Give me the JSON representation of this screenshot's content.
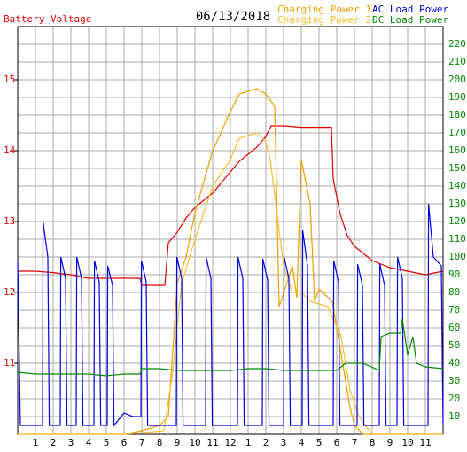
{
  "chart_data": {
    "type": "line",
    "title": "06/13/2018",
    "xlim": [
      0,
      24
    ],
    "xticks": [
      1,
      2,
      3,
      4,
      5,
      6,
      7,
      8,
      9,
      10,
      11,
      12,
      {
        "value": 13,
        "label": "1"
      },
      {
        "value": 14,
        "label": "2"
      },
      {
        "value": 15,
        "label": "3"
      },
      {
        "value": 16,
        "label": "4"
      },
      {
        "value": 17,
        "label": "5"
      },
      {
        "value": 18,
        "label": "6"
      },
      {
        "value": 19,
        "label": "7"
      },
      {
        "value": 20,
        "label": "8"
      },
      {
        "value": 21,
        "label": "9"
      },
      {
        "value": 22,
        "label": "10"
      },
      {
        "value": 23,
        "label": "11"
      }
    ],
    "ylim": [
      10,
      15.75
    ],
    "yticks": [
      11,
      12,
      13,
      14,
      15
    ],
    "y2lim": [
      0,
      230
    ],
    "y2ticks": [
      10,
      20,
      30,
      40,
      50,
      60,
      70,
      80,
      90,
      100,
      110,
      120,
      130,
      140,
      150,
      160,
      170,
      180,
      190,
      200,
      210,
      220
    ],
    "grid": true,
    "ytick_color": "#dd0000",
    "y2tick_color": "#008800",
    "series": [
      {
        "name": "Battery Voltage",
        "color": "#dd0000",
        "x": [
          0,
          1,
          2,
          3,
          4,
          5,
          6,
          6.9,
          7,
          8.3,
          8.5,
          9,
          9.5,
          10,
          10.5,
          11,
          11.5,
          12,
          12.5,
          13,
          13.5,
          14,
          14.3,
          15,
          16,
          17,
          17.7,
          17.8,
          18.2,
          18.6,
          19,
          19.5,
          20,
          21,
          22,
          23,
          24
        ],
        "values": [
          12.3,
          12.3,
          12.28,
          12.25,
          12.2,
          12.2,
          12.2,
          12.2,
          12.1,
          12.1,
          12.7,
          12.85,
          13.05,
          13.2,
          13.3,
          13.4,
          13.55,
          13.7,
          13.85,
          13.95,
          14.05,
          14.2,
          14.35,
          14.35,
          14.33,
          14.33,
          14.33,
          13.6,
          13.1,
          12.8,
          12.65,
          12.55,
          12.45,
          12.35,
          12.3,
          12.25,
          12.3
        ]
      },
      {
        "name": "Charging Power 1",
        "color": "#f0a000",
        "axis": "y2",
        "x": [
          0,
          6,
          7,
          8,
          8.5,
          9,
          9.5,
          10,
          11,
          12,
          12.5,
          13.5,
          14,
          14.5,
          14.75,
          15.5,
          15.75,
          16,
          16.5,
          16.75,
          17,
          17.75,
          18.25,
          18.75,
          19,
          19.5,
          24
        ],
        "values": [
          0,
          0,
          2,
          5,
          10,
          85,
          100,
          125,
          160,
          182,
          192,
          195,
          192,
          185,
          72,
          95,
          77,
          155,
          130,
          75,
          82,
          75,
          45,
          15,
          5,
          0,
          0
        ]
      },
      {
        "name": "Charging Power 2",
        "color": "#f8c030",
        "axis": "y2",
        "x": [
          0,
          6,
          8.25,
          8.75,
          9.25,
          10,
          11,
          12,
          12.5,
          13.5,
          14,
          14.25,
          14.5,
          15,
          15.5,
          16,
          16.5,
          17.5,
          18.25,
          18.75,
          19.25,
          20,
          24
        ],
        "values": [
          0,
          0,
          2,
          35,
          85,
          110,
          140,
          155,
          167,
          170,
          165,
          155,
          135,
          95,
          80,
          80,
          75,
          72,
          55,
          25,
          10,
          0,
          0
        ]
      },
      {
        "name": "AC Load Power",
        "color": "#0000dd",
        "axis": "y2",
        "x": [
          0,
          0.15,
          1.4,
          1.43,
          1.7,
          1.78,
          2.4,
          2.43,
          2.7,
          2.78,
          3.3,
          3.33,
          3.6,
          3.68,
          4.3,
          4.33,
          4.6,
          4.68,
          5.05,
          5.08,
          5.35,
          5.43,
          6,
          6.5,
          6.95,
          6.98,
          7.25,
          7.33,
          8.95,
          8.98,
          9.25,
          9.33,
          10.6,
          10.63,
          10.9,
          10.98,
          12.4,
          12.43,
          12.7,
          12.78,
          13.8,
          13.83,
          14.1,
          14.18,
          15,
          15.03,
          15.3,
          15.38,
          16.05,
          16.08,
          16.35,
          16.43,
          17.8,
          17.83,
          18.1,
          18.18,
          19.15,
          19.18,
          19.45,
          19.53,
          20.4,
          20.43,
          20.7,
          20.78,
          21.4,
          21.43,
          21.7,
          21.78,
          23.15,
          23.18,
          23.45,
          23.9,
          24
        ],
        "values": [
          97,
          5,
          5,
          120,
          100,
          5,
          5,
          100,
          88,
          5,
          5,
          100,
          88,
          5,
          5,
          98,
          86,
          5,
          5,
          95,
          84,
          5,
          12,
          10,
          10,
          98,
          86,
          5,
          5,
          100,
          88,
          5,
          5,
          100,
          88,
          5,
          5,
          100,
          88,
          5,
          5,
          99,
          87,
          5,
          5,
          100,
          88,
          5,
          5,
          115,
          95,
          5,
          5,
          98,
          86,
          5,
          5,
          96,
          84,
          5,
          5,
          96,
          84,
          5,
          5,
          100,
          88,
          5,
          5,
          130,
          100,
          95,
          5
        ]
      },
      {
        "name": "DC Load Power",
        "color": "#008800",
        "axis": "y2",
        "x": [
          0,
          1,
          2,
          3,
          4,
          5,
          6,
          6.9,
          7,
          8,
          9,
          10,
          11,
          12,
          13,
          14,
          15,
          16,
          17,
          18,
          18.5,
          19.5,
          20.4,
          20.5,
          21,
          21.6,
          21.7,
          22,
          22.3,
          22.5,
          23,
          24
        ],
        "values": [
          35,
          34,
          34,
          34,
          34,
          33,
          34,
          34,
          37,
          37,
          36,
          36,
          36,
          36,
          37,
          37,
          36,
          36,
          36,
          36,
          40,
          40,
          36,
          55,
          57,
          57,
          65,
          45,
          55,
          40,
          38,
          37
        ]
      }
    ]
  }
}
